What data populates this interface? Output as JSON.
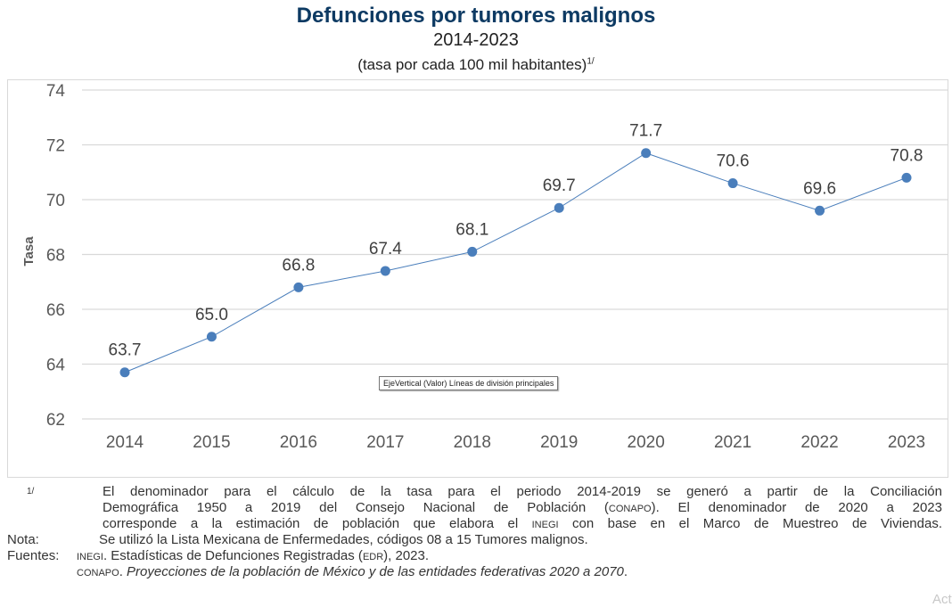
{
  "header": {
    "title": "Defunciones por tumores malignos",
    "subtitle": "2014-2023",
    "unit": "(tasa por cada 100 mil habitantes)",
    "unit_footnote": "1/"
  },
  "chart_data": {
    "type": "line",
    "title": "Defunciones por tumores malignos",
    "subtitle": "2014-2023 (tasa por cada 100 mil habitantes)",
    "xlabel": "",
    "ylabel": "Tasa",
    "categories": [
      "2014",
      "2015",
      "2016",
      "2017",
      "2018",
      "2019",
      "2020",
      "2021",
      "2022",
      "2023"
    ],
    "series": [
      {
        "name": "Tasa",
        "values": [
          63.7,
          65.0,
          66.8,
          67.4,
          68.1,
          69.7,
          71.7,
          70.6,
          69.6,
          70.8
        ],
        "color": "#4a7ebb"
      }
    ],
    "data_labels": [
      "63.7",
      "65.0",
      "66.8",
      "67.4",
      "68.1",
      "69.7",
      "71.7",
      "70.6",
      "69.6",
      "70.8"
    ],
    "ylim": [
      62,
      74
    ],
    "yticks": [
      62,
      64,
      66,
      68,
      70,
      72,
      74
    ],
    "grid": true,
    "legend": "none"
  },
  "tooltip": "EjeVertical (Valor)  Líneas de división principales",
  "notes": {
    "footnote_marker": "1/",
    "footnote_line1": "El denominador para el cálculo de la tasa para el periodo 2014-2019 se generó a partir de la Conciliación",
    "footnote_line2a": "Demográfica 1950 a 2019 del Consejo Nacional de Población (",
    "footnote_line2_abbr": "CONAPO",
    "footnote_line2b": "). El denominador de 2020 a 2023",
    "footnote_line3a": "corresponde a la estimación de población que elabora el ",
    "footnote_line3_abbr": "INEGI",
    "footnote_line3b": " con base en el Marco de Muestreo de Viviendas.",
    "nota_label": "Nota:",
    "nota_text": "Se utilizó la Lista Mexicana de Enfermedades, códigos 08 a 15 Tumores malignos.",
    "fuentes_label": "Fuentes:",
    "fuente1_abbr": "INEGI",
    "fuente1_text_a": ". Estadísticas de Defunciones Registradas (",
    "fuente1_abbr2": "EDR",
    "fuente1_text_b": "), 2023.",
    "fuente2_abbr": "CONAPO",
    "fuente2_text_a": ". ",
    "fuente2_italic": "Proyecciones de la población de México y de las entidades federativas 2020 a 2070",
    "fuente2_text_b": "."
  },
  "watermark": "Act"
}
